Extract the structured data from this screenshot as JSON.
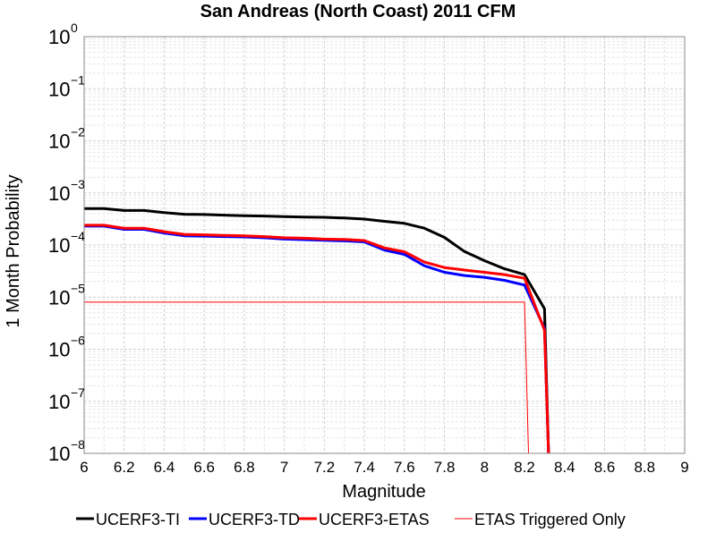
{
  "chart_data": {
    "type": "line",
    "title": "San Andreas (North Coast) 2011 CFM",
    "xlabel": "Magnitude",
    "ylabel": "1 Month Probability",
    "xlim": [
      6,
      9
    ],
    "ylim": [
      1e-08,
      1
    ],
    "yscale": "log",
    "grid": true,
    "legend_position": "bottom",
    "x_ticks": [
      "6",
      "6.2",
      "6.4",
      "6.6",
      "6.8",
      "7",
      "7.2",
      "7.4",
      "7.6",
      "7.8",
      "8",
      "8.2",
      "8.4",
      "8.6",
      "8.8",
      "9"
    ],
    "y_tick_exponents": [
      0,
      -1,
      -2,
      -3,
      -4,
      -5,
      -6,
      -7,
      -8
    ],
    "series": [
      {
        "name": "UCERF3-TI",
        "color": "#000000",
        "width": "thick",
        "x": [
          6.0,
          6.1,
          6.2,
          6.3,
          6.4,
          6.5,
          6.6,
          6.7,
          6.8,
          6.9,
          7.0,
          7.1,
          7.2,
          7.3,
          7.4,
          7.5,
          7.6,
          7.7,
          7.8,
          7.9,
          8.0,
          8.1,
          8.2,
          8.3,
          8.32
        ],
        "y": [
          0.0005,
          0.0005,
          0.00046,
          0.00046,
          0.00042,
          0.00039,
          0.000385,
          0.000375,
          0.000365,
          0.00036,
          0.00035,
          0.000345,
          0.00034,
          0.00033,
          0.000315,
          0.000285,
          0.00026,
          0.00021,
          0.00014,
          7.5e-05,
          5e-05,
          3.5e-05,
          2.7e-05,
          6e-06,
          1e-08
        ]
      },
      {
        "name": "UCERF3-TD",
        "color": "#0000ff",
        "width": "thick",
        "x": [
          6.0,
          6.1,
          6.2,
          6.3,
          6.4,
          6.5,
          6.6,
          6.7,
          6.8,
          6.9,
          7.0,
          7.1,
          7.2,
          7.3,
          7.4,
          7.5,
          7.6,
          7.7,
          7.8,
          7.9,
          8.0,
          8.1,
          8.2,
          8.3,
          8.32
        ],
        "y": [
          0.00023,
          0.00023,
          0.0002,
          0.0002,
          0.00017,
          0.00015,
          0.000148,
          0.000145,
          0.000143,
          0.000138,
          0.00013,
          0.000127,
          0.000123,
          0.00012,
          0.000115,
          8e-05,
          6.6e-05,
          4e-05,
          3e-05,
          2.6e-05,
          2.4e-05,
          2.1e-05,
          1.7e-05,
          2.5e-06,
          1e-08
        ]
      },
      {
        "name": "UCERF3-ETAS",
        "color": "#ff0000",
        "width": "thick",
        "x": [
          6.0,
          6.1,
          6.2,
          6.3,
          6.4,
          6.5,
          6.6,
          6.7,
          6.8,
          6.9,
          7.0,
          7.1,
          7.2,
          7.3,
          7.4,
          7.5,
          7.6,
          7.7,
          7.8,
          7.9,
          8.0,
          8.1,
          8.2,
          8.3,
          8.32
        ],
        "y": [
          0.00024,
          0.00024,
          0.00021,
          0.00021,
          0.00018,
          0.00016,
          0.000157,
          0.000153,
          0.00015,
          0.000145,
          0.000138,
          0.000135,
          0.00013,
          0.000128,
          0.000122,
          8.8e-05,
          7.4e-05,
          4.7e-05,
          3.7e-05,
          3.3e-05,
          3e-05,
          2.7e-05,
          2.3e-05,
          2.3e-06,
          1e-08
        ]
      },
      {
        "name": "ETAS Triggered Only",
        "color": "#ff0000",
        "width": "thin",
        "x": [
          6.0,
          8.2,
          8.22
        ],
        "y": [
          8e-06,
          8e-06,
          1e-08
        ]
      }
    ]
  }
}
